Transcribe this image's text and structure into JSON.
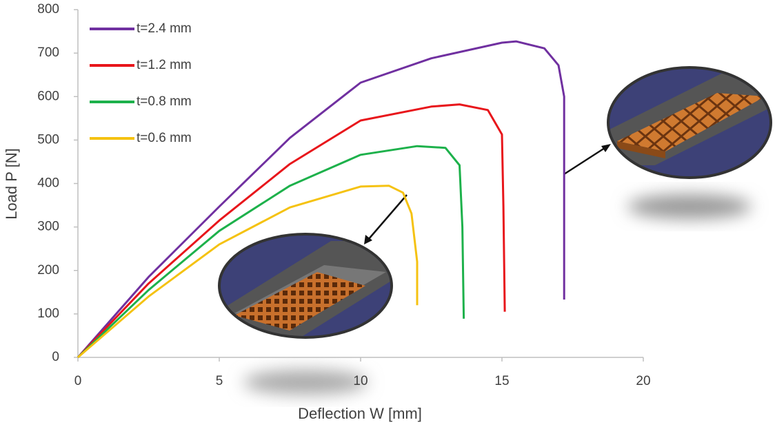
{
  "chart_data": {
    "type": "line",
    "x_label": "Deflection W [mm]",
    "y_label": "Load P [N]",
    "xlim": [
      0,
      20
    ],
    "xticks": [
      0,
      5,
      10,
      15,
      20
    ],
    "ylim": [
      0,
      800
    ],
    "yticks": [
      0,
      100,
      200,
      300,
      400,
      500,
      600,
      700,
      800
    ],
    "grid": false,
    "legend": "upper left",
    "series": [
      {
        "name": "t=2.4 mm",
        "color": "#7030a0",
        "x": [
          0,
          2.5,
          5,
          7.5,
          10,
          12.5,
          15,
          15.5,
          16.5,
          17,
          17.2,
          17.2
        ],
        "values": [
          0,
          185,
          347,
          505,
          632,
          688,
          724,
          727,
          711,
          672,
          600,
          133
        ]
      },
      {
        "name": "t=1.2 mm",
        "color": "#e8161b",
        "x": [
          0,
          2.5,
          5,
          7.5,
          10,
          12.5,
          13.5,
          14.5,
          15,
          15.05,
          15.1
        ],
        "values": [
          0,
          170,
          315,
          445,
          545,
          577,
          582,
          569,
          513,
          347,
          105
        ]
      },
      {
        "name": "t=0.8 mm",
        "color": "#1db14b",
        "x": [
          0,
          2.5,
          5,
          7.5,
          10,
          12,
          13,
          13.5,
          13.6,
          13.65
        ],
        "values": [
          0,
          155,
          291,
          395,
          466,
          486,
          482,
          442,
          300,
          89
        ]
      },
      {
        "name": "t=0.6 mm",
        "color": "#f5c211",
        "x": [
          0,
          2.5,
          5,
          7.5,
          10,
          11,
          11.5,
          11.8,
          12,
          12
        ],
        "values": [
          0,
          140,
          260,
          345,
          393,
          395,
          379,
          331,
          220,
          120
        ]
      }
    ]
  }
}
